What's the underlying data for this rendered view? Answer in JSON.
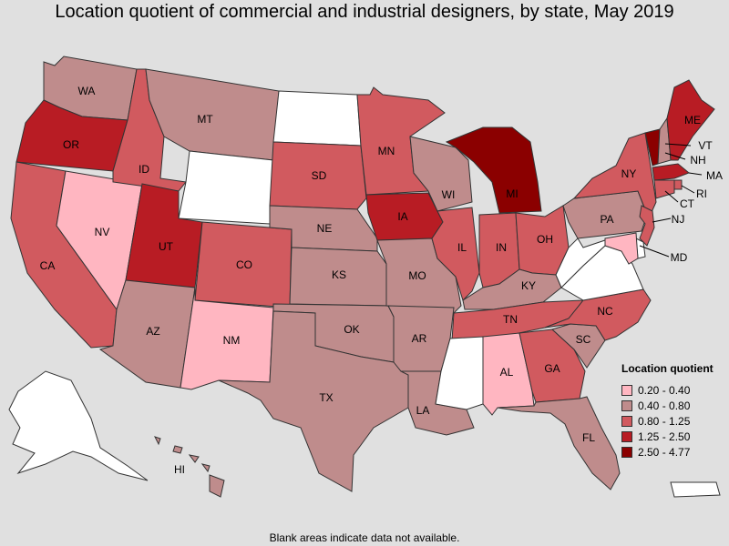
{
  "title": "Location quotient of commercial and industrial designers, by state, May 2019",
  "note": "Blank areas indicate data not available.",
  "legend": {
    "title": "Location quotient",
    "items": [
      {
        "label": "0.20 - 0.40",
        "color": "#ffb6c1"
      },
      {
        "label": "0.40 - 0.80",
        "color": "#bf8c8c"
      },
      {
        "label": "0.80 - 1.25",
        "color": "#d15a5f"
      },
      {
        "label": "1.25 - 2.50",
        "color": "#b81c24"
      },
      {
        "label": "2.50 - 4.77",
        "color": "#8b0000"
      }
    ]
  },
  "nodata_color": "#ffffff",
  "states": {
    "WA": {
      "label": "WA",
      "class": 1
    },
    "OR": {
      "label": "OR",
      "class": 3
    },
    "CA": {
      "label": "CA",
      "class": 2
    },
    "NV": {
      "label": "NV",
      "class": 0
    },
    "ID": {
      "label": "ID",
      "class": 2
    },
    "MT": {
      "label": "MT",
      "class": 1
    },
    "WY": {
      "label": "",
      "class": null
    },
    "UT": {
      "label": "UT",
      "class": 3
    },
    "AZ": {
      "label": "AZ",
      "class": 1
    },
    "CO": {
      "label": "CO",
      "class": 2
    },
    "NM": {
      "label": "NM",
      "class": 0
    },
    "ND": {
      "label": "",
      "class": null
    },
    "SD": {
      "label": "SD",
      "class": 2
    },
    "NE": {
      "label": "NE",
      "class": 1
    },
    "KS": {
      "label": "KS",
      "class": 1
    },
    "OK": {
      "label": "OK",
      "class": 1
    },
    "TX": {
      "label": "TX",
      "class": 1
    },
    "MN": {
      "label": "MN",
      "class": 2
    },
    "IA": {
      "label": "IA",
      "class": 3
    },
    "MO": {
      "label": "MO",
      "class": 1
    },
    "AR": {
      "label": "AR",
      "class": 1
    },
    "LA": {
      "label": "LA",
      "class": 1
    },
    "WI": {
      "label": "WI",
      "class": 1
    },
    "IL": {
      "label": "IL",
      "class": 2
    },
    "MI": {
      "label": "MI",
      "class": 4
    },
    "IN": {
      "label": "IN",
      "class": 2
    },
    "OH": {
      "label": "OH",
      "class": 2
    },
    "KY": {
      "label": "KY",
      "class": 1
    },
    "TN": {
      "label": "TN",
      "class": 2
    },
    "MS": {
      "label": "",
      "class": null
    },
    "AL": {
      "label": "AL",
      "class": 0
    },
    "GA": {
      "label": "GA",
      "class": 2
    },
    "FL": {
      "label": "FL",
      "class": 1
    },
    "SC": {
      "label": "SC",
      "class": 1
    },
    "NC": {
      "label": "NC",
      "class": 2
    },
    "VA": {
      "label": "",
      "class": null
    },
    "WV": {
      "label": "",
      "class": null
    },
    "PA": {
      "label": "PA",
      "class": 1
    },
    "NY": {
      "label": "NY",
      "class": 2
    },
    "VT": {
      "label": "VT",
      "class": 4
    },
    "NH": {
      "label": "NH",
      "class": 1
    },
    "ME": {
      "label": "ME",
      "class": 3
    },
    "MA": {
      "label": "MA",
      "class": 3
    },
    "RI": {
      "label": "RI",
      "class": 2
    },
    "CT": {
      "label": "CT",
      "class": 2
    },
    "NJ": {
      "label": "NJ",
      "class": 2
    },
    "DE": {
      "label": "",
      "class": null
    },
    "MD": {
      "label": "MD",
      "class": 0
    },
    "AK": {
      "label": "",
      "class": null
    },
    "HI": {
      "label": "HI",
      "class": 1
    },
    "PR": {
      "label": "",
      "class": null
    }
  }
}
